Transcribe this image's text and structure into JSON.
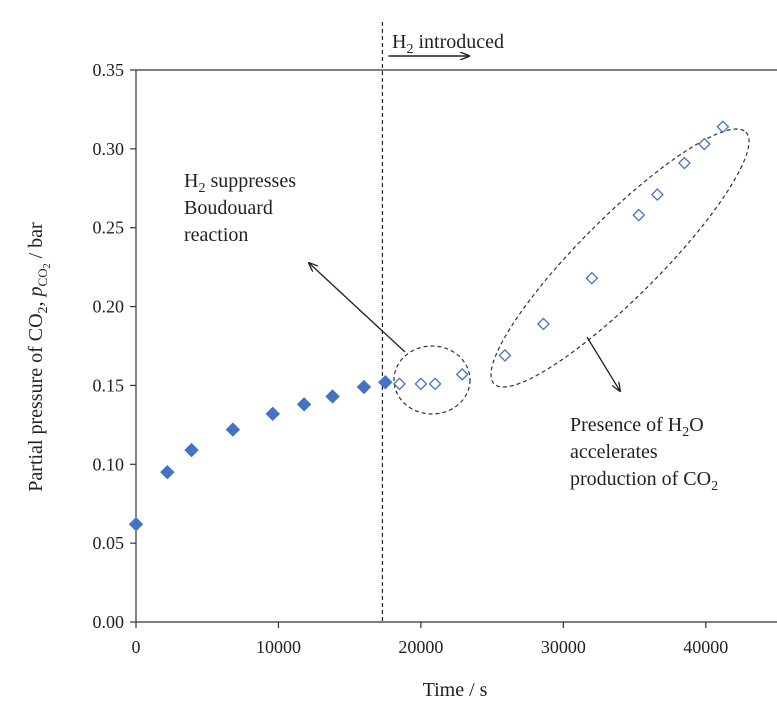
{
  "chart_data": {
    "type": "scatter",
    "xlabel": "Time / s",
    "ylabel": "Partial pressure of CO",
    "xlim": [
      0,
      45000
    ],
    "ylim": [
      0,
      0.35
    ],
    "x_ticks": [
      "0",
      "10000",
      "20000",
      "30000",
      "40000"
    ],
    "y_ticks": [
      "0.00",
      "0.05",
      "0.10",
      "0.15",
      "0.20",
      "0.25",
      "0.30",
      "0.35"
    ],
    "grid": false,
    "series": [
      {
        "marker": "filled-diamond",
        "color": "#4472c4",
        "x": [
          0,
          2200,
          3900,
          6800,
          9600,
          11800,
          13800,
          16000,
          17500
        ],
        "y": [
          0.062,
          0.095,
          0.109,
          0.122,
          0.132,
          0.138,
          0.143,
          0.149,
          0.152
        ]
      },
      {
        "marker": "open-diamond",
        "color": "#4472c4",
        "x": [
          18500,
          20000,
          21000,
          22900,
          25900,
          28600,
          32000,
          35300,
          36600,
          38500,
          39900,
          41200
        ],
        "y": [
          0.151,
          0.151,
          0.151,
          0.157,
          0.169,
          0.189,
          0.218,
          0.258,
          0.271,
          0.291,
          0.303,
          0.314
        ]
      }
    ],
    "vline": {
      "x": 17300,
      "label": "H",
      "label_sub": "2",
      "label_rest": " introduced"
    },
    "annotations": [
      {
        "lines": [
          [
            "H",
            "2",
            " suppresses"
          ],
          [
            "Boudouard",
            "",
            ""
          ],
          [
            "reaction",
            "",
            ""
          ]
        ]
      },
      {
        "lines": [
          [
            "Presence of H",
            "2",
            "O"
          ],
          [
            "accelerates",
            "",
            ""
          ],
          [
            "production of CO",
            "2",
            ""
          ]
        ]
      }
    ]
  }
}
